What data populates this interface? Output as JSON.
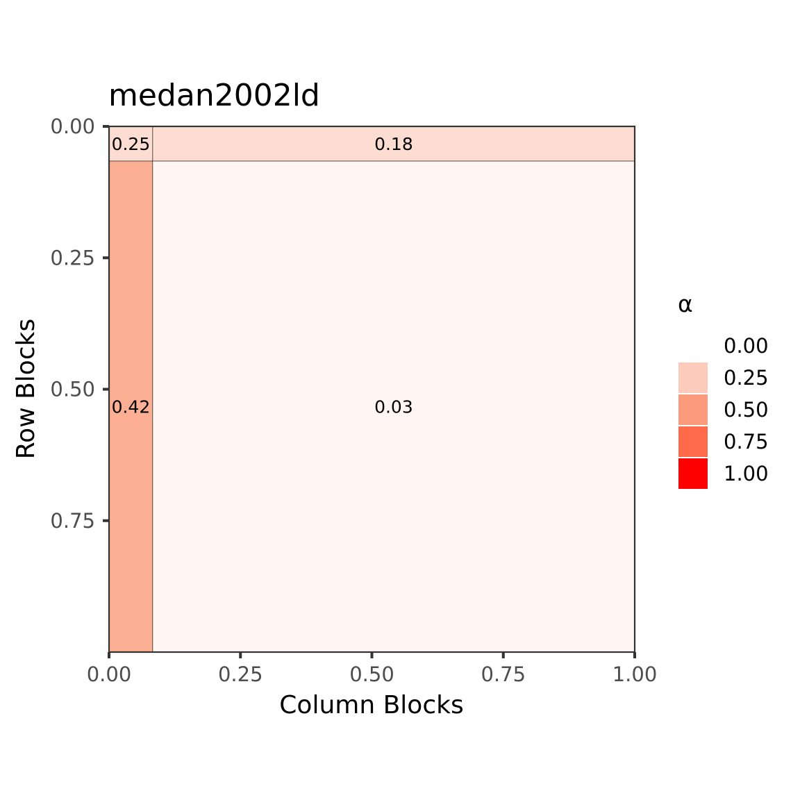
{
  "chart_data": {
    "type": "heatmap",
    "title": "medan2002ld",
    "xlabel": "Column Blocks",
    "ylabel": "Row Blocks",
    "xlim": [
      0,
      1
    ],
    "ylim": [
      0,
      1
    ],
    "y_reversed": true,
    "x_ticks": [
      "0.00",
      "0.25",
      "0.50",
      "0.75",
      "1.00"
    ],
    "y_ticks": [
      "0.00",
      "0.25",
      "0.50",
      "0.75"
    ],
    "x_tick_values": [
      0,
      0.25,
      0.5,
      0.75,
      1.0
    ],
    "y_tick_values": [
      0,
      0.25,
      0.5,
      0.75
    ],
    "cells": [
      {
        "x0": 0.0,
        "x1": 0.083,
        "y0": 0.0,
        "y1": 0.066,
        "value": 0.25,
        "label": "0.25",
        "color": "#fdddd2"
      },
      {
        "x0": 0.083,
        "x1": 1.0,
        "y0": 0.0,
        "y1": 0.066,
        "value": 0.18,
        "label": "0.18",
        "color": "#fddcd1"
      },
      {
        "x0": 0.0,
        "x1": 0.083,
        "y0": 0.066,
        "y1": 1.0,
        "value": 0.42,
        "label": "0.42",
        "color": "#fcaf93"
      },
      {
        "x0": 0.083,
        "x1": 1.0,
        "y0": 0.066,
        "y1": 1.0,
        "value": 0.03,
        "label": "0.03",
        "color": "#fff5f2"
      }
    ],
    "legend": {
      "title": "α",
      "placement": "right",
      "entries": [
        {
          "label": "0.00",
          "color": "#ffffff"
        },
        {
          "label": "0.25",
          "color": "#fccbbb"
        },
        {
          "label": "0.50",
          "color": "#fc9b7c"
        },
        {
          "label": "0.75",
          "color": "#ff6a4a"
        },
        {
          "label": "1.00",
          "color": "#ff0000"
        }
      ]
    },
    "grid": false
  }
}
